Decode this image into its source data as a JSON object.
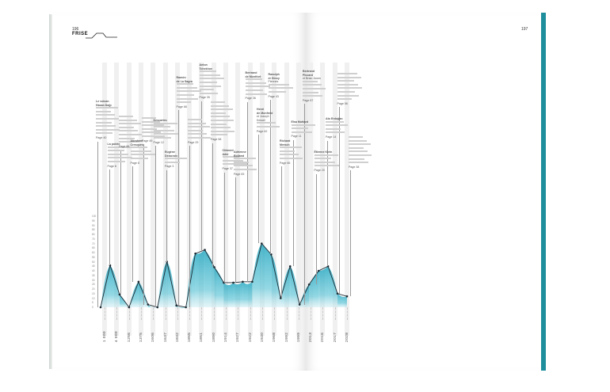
{
  "header": {
    "page_left": "196",
    "page_right": "197",
    "section_title": "FRISE"
  },
  "y_axis_labels": [
    "100",
    "95",
    "90",
    "85",
    "80",
    "75",
    "70",
    "65",
    "60",
    "55",
    "50",
    "45",
    "40",
    "35",
    "30",
    "25",
    "20",
    "15",
    "10",
    "5",
    "0"
  ],
  "years": [
    "1 000",
    "4 000",
    "1256",
    "1375",
    "1606",
    "1637",
    "1832",
    "1855",
    "1851",
    "1890",
    "1914",
    "1927",
    "1922",
    "1930",
    "1968",
    "1992",
    "1999",
    "2013",
    "2016",
    "2017",
    "2028"
  ],
  "series_values": [
    0,
    46,
    14,
    0,
    28,
    3,
    0,
    50,
    2,
    0,
    59,
    63,
    44,
    27,
    27,
    28,
    28,
    70,
    58,
    10,
    45,
    3,
    25,
    40,
    45,
    15,
    12
  ],
  "annotations": [
    {
      "lines": [
        "Le volcan",
        "Hasan Dağı",
        "",
        "",
        "",
        "",
        "",
        "",
        "",
        "",
        "Page 40"
      ]
    },
    {
      "lines": [
        "La pointe",
        "",
        "",
        "",
        "",
        "",
        "Page 6"
      ]
    },
    {
      "lines": [
        "",
        "",
        "",
        "",
        "",
        "",
        "",
        "",
        "Page 86"
      ]
    },
    {
      "lines": [
        "Abraham",
        "Cresques",
        "",
        "",
        "",
        "",
        "Page 8"
      ]
    },
    {
      "lines": [
        "",
        "",
        "",
        "",
        "",
        "",
        "Page 49"
      ]
    },
    {
      "lines": [
        "Descartes",
        "",
        "",
        "",
        "",
        "",
        "Page 12"
      ]
    },
    {
      "lines": [
        "Eugène",
        "Delacroix",
        "",
        "",
        "Page 3"
      ]
    },
    {
      "lines": [
        "Ramón",
        "de La Sagra",
        "",
        "",
        "",
        "",
        "",
        "",
        "Page 68"
      ]
    },
    {
      "lines": [
        "",
        "",
        "",
        "",
        "",
        "",
        "Page 29"
      ]
    },
    {
      "lines": [
        "Anton",
        "Tchekhov",
        "",
        "",
        "",
        "",
        "",
        "",
        "",
        "Page 35"
      ]
    },
    {
      "lines": [
        "",
        "",
        "",
        "",
        "",
        "",
        "",
        "",
        "",
        "",
        "Page 58"
      ]
    },
    {
      "lines": [
        "Clément",
        "Ader",
        "",
        "",
        "",
        "Page 37"
      ]
    },
    {
      "lines": [
        "Adrienne",
        "Bolland",
        "",
        "",
        "",
        "",
        "Page 83"
      ]
    },
    {
      "lines": [
        "Bertrand",
        "de Montfort",
        "",
        "",
        "",
        "",
        "",
        "Page 36"
      ]
    },
    {
      "lines": [
        "Henri",
        "de Monfreid",
        "et Joseph",
        "Kessel",
        "",
        "",
        "Page 62"
      ]
    },
    {
      "lines": [
        "Ranulph",
        "et Ginny",
        "Fiennes",
        "",
        "",
        "",
        "Page 43"
      ]
    },
    {
      "lines": [
        "Richard",
        "Mersch",
        "",
        "",
        "",
        "",
        "Page 66"
      ]
    },
    {
      "lines": [
        "Elsa Muttard",
        "",
        "",
        "",
        "Page 11"
      ]
    },
    {
      "lines": [
        "Bertrand",
        "Piccard",
        "et Brian Jones",
        "",
        "",
        "",
        "",
        "",
        "Page 87"
      ]
    },
    {
      "lines": [
        "Étienne Klein",
        "",
        "",
        "",
        "",
        "Page 20"
      ]
    },
    {
      "lines": [
        "Ato Erdoğan",
        "",
        "",
        "",
        "",
        "Page 14"
      ]
    },
    {
      "lines": [
        "",
        "",
        "",
        "",
        "",
        "",
        "",
        "",
        "Page 56"
      ]
    },
    {
      "lines": [
        "",
        "",
        "",
        "",
        "",
        "",
        "",
        "",
        "Page 38"
      ]
    }
  ],
  "axis_title": "",
  "footer_note": ""
}
